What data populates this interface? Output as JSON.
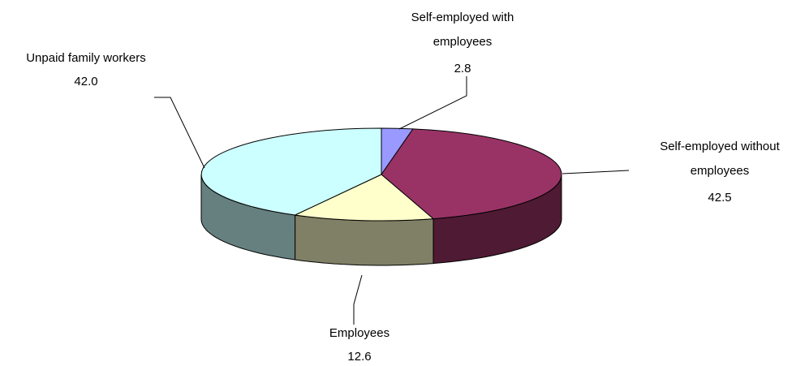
{
  "chart_data": {
    "type": "pie",
    "style": "3d-exploded-none",
    "start_angle_deg": 0,
    "direction": "clockwise",
    "series": [
      {
        "name": "",
        "slices": [
          {
            "label": "Self-employed with employees",
            "label_lines": [
              "Self-employed with",
              "employees"
            ],
            "value": 2.8,
            "value_text": "2.8",
            "top_color": "#9999FF",
            "side_color": "#6B6BB3"
          },
          {
            "label": "Self-employed without employees",
            "label_lines": [
              "Self-employed without",
              "employees"
            ],
            "value": 42.5,
            "value_text": "42.5",
            "top_color": "#993366",
            "side_color": "#4F1A33"
          },
          {
            "label": "Employees",
            "label_lines": [
              "Employees"
            ],
            "value": 12.6,
            "value_text": "12.6",
            "top_color": "#FFFFCC",
            "side_color": "#808066"
          },
          {
            "label": "Unpaid family workers",
            "label_lines": [
              "Unpaid family workers"
            ],
            "value": 42.0,
            "value_text": "42.0",
            "top_color": "#CCFFFF",
            "side_color": "#668080"
          }
        ]
      }
    ]
  }
}
